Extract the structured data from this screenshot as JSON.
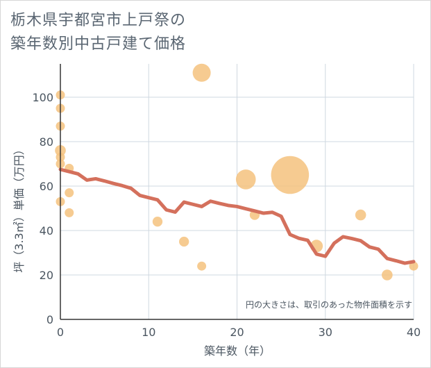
{
  "chart_data": {
    "type": "scatter",
    "title_lines": [
      "栃木県宇都宮市上戸祭の",
      "築年数別中古戸建て価格"
    ],
    "xlabel": "築年数（年）",
    "ylabel": "坪（3.3㎡）単価（万円）",
    "xlim": [
      0,
      40
    ],
    "ylim": [
      0,
      115
    ],
    "xticks": [
      0,
      10,
      20,
      30,
      40
    ],
    "yticks": [
      0,
      20,
      40,
      60,
      80,
      100
    ],
    "note": "円の大きさは、取引のあった物件面積を示す",
    "colors": {
      "bubble": "#f5c27e",
      "line": "#d4705c",
      "grid": "#cfd8e0",
      "axis": "#333333"
    },
    "points": [
      {
        "x": 0,
        "y": 101,
        "s": 1
      },
      {
        "x": 0,
        "y": 95,
        "s": 1
      },
      {
        "x": 0,
        "y": 87,
        "s": 1
      },
      {
        "x": 0,
        "y": 76,
        "s": 1.2
      },
      {
        "x": 0,
        "y": 73,
        "s": 1
      },
      {
        "x": 0,
        "y": 70,
        "s": 1
      },
      {
        "x": 0,
        "y": 53,
        "s": 1
      },
      {
        "x": 1,
        "y": 68,
        "s": 1
      },
      {
        "x": 1,
        "y": 57,
        "s": 1
      },
      {
        "x": 1,
        "y": 48,
        "s": 1
      },
      {
        "x": 11,
        "y": 44,
        "s": 1.1
      },
      {
        "x": 14,
        "y": 35,
        "s": 1.1
      },
      {
        "x": 16,
        "y": 111,
        "s": 2
      },
      {
        "x": 16,
        "y": 24,
        "s": 1
      },
      {
        "x": 21,
        "y": 63,
        "s": 2.2
      },
      {
        "x": 22,
        "y": 47,
        "s": 1.1
      },
      {
        "x": 26,
        "y": 65,
        "s": 4.2
      },
      {
        "x": 29,
        "y": 33,
        "s": 1.4
      },
      {
        "x": 34,
        "y": 47,
        "s": 1.2
      },
      {
        "x": 37,
        "y": 20,
        "s": 1.2
      },
      {
        "x": 40,
        "y": 24,
        "s": 1
      }
    ],
    "trend": {
      "x": [
        0,
        1,
        2,
        3,
        4,
        5,
        6,
        7,
        8,
        9,
        10,
        11,
        12,
        13,
        14,
        15,
        16,
        17,
        18,
        19,
        20,
        21,
        22,
        23,
        24,
        25,
        26,
        27,
        28,
        29,
        30,
        31,
        32,
        33,
        34,
        35,
        36,
        37,
        38,
        39,
        40
      ],
      "y": [
        67.5,
        66.5,
        65.5,
        62.7,
        63.3,
        62.3,
        61.2,
        60.2,
        59.0,
        55.8,
        54.8,
        53.8,
        49.3,
        48.3,
        52.8,
        51.8,
        50.8,
        53.2,
        52.2,
        51.3,
        50.8,
        49.8,
        48.8,
        47.8,
        48.2,
        46.4,
        38.2,
        36.5,
        35.6,
        29.4,
        28.4,
        34.3,
        37.2,
        36.4,
        35.4,
        32.6,
        31.6,
        27.4,
        26.4,
        25.3,
        26.0
      ]
    }
  }
}
